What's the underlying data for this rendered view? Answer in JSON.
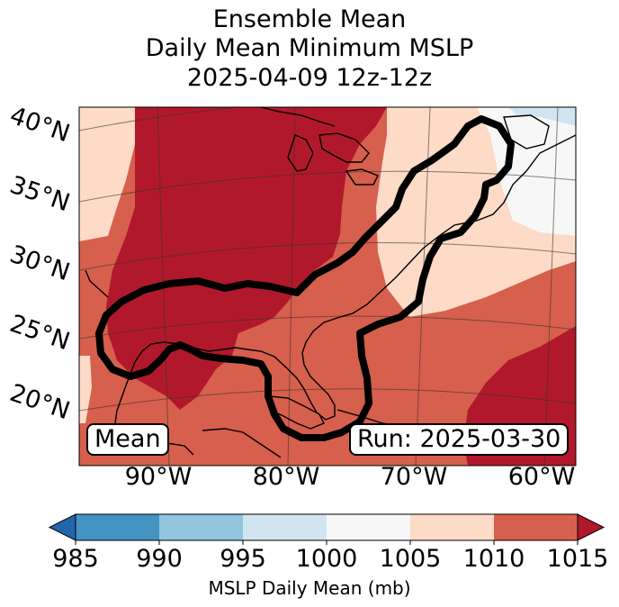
{
  "title": {
    "line1": "Ensemble Mean",
    "line2": "Daily Mean Minimum MSLP",
    "line3": "2025-04-09 12z-12z"
  },
  "map": {
    "lat_labels": [
      "40°N",
      "35°N",
      "30°N",
      "25°N",
      "20°N"
    ],
    "lon_labels": [
      "90°W",
      "80°W",
      "70°W",
      "60°W"
    ],
    "mean_badge": "Mean",
    "run_badge": "Run: 2025-03-30"
  },
  "colorbar": {
    "ticks": [
      "985",
      "990",
      "995",
      "1000",
      "1005",
      "1010",
      "1015"
    ],
    "label": "MSLP Daily Mean (mb)",
    "colors": {
      "below": "#2166ac",
      "b985_990": "#4393c3",
      "b990_995": "#92c5de",
      "b995_1000": "#d1e5f0",
      "b1000_1005": "#f7f7f7",
      "b1005_1010": "#fddbc7",
      "b1010_1015": "#d6604d",
      "above": "#b2182b"
    }
  }
}
